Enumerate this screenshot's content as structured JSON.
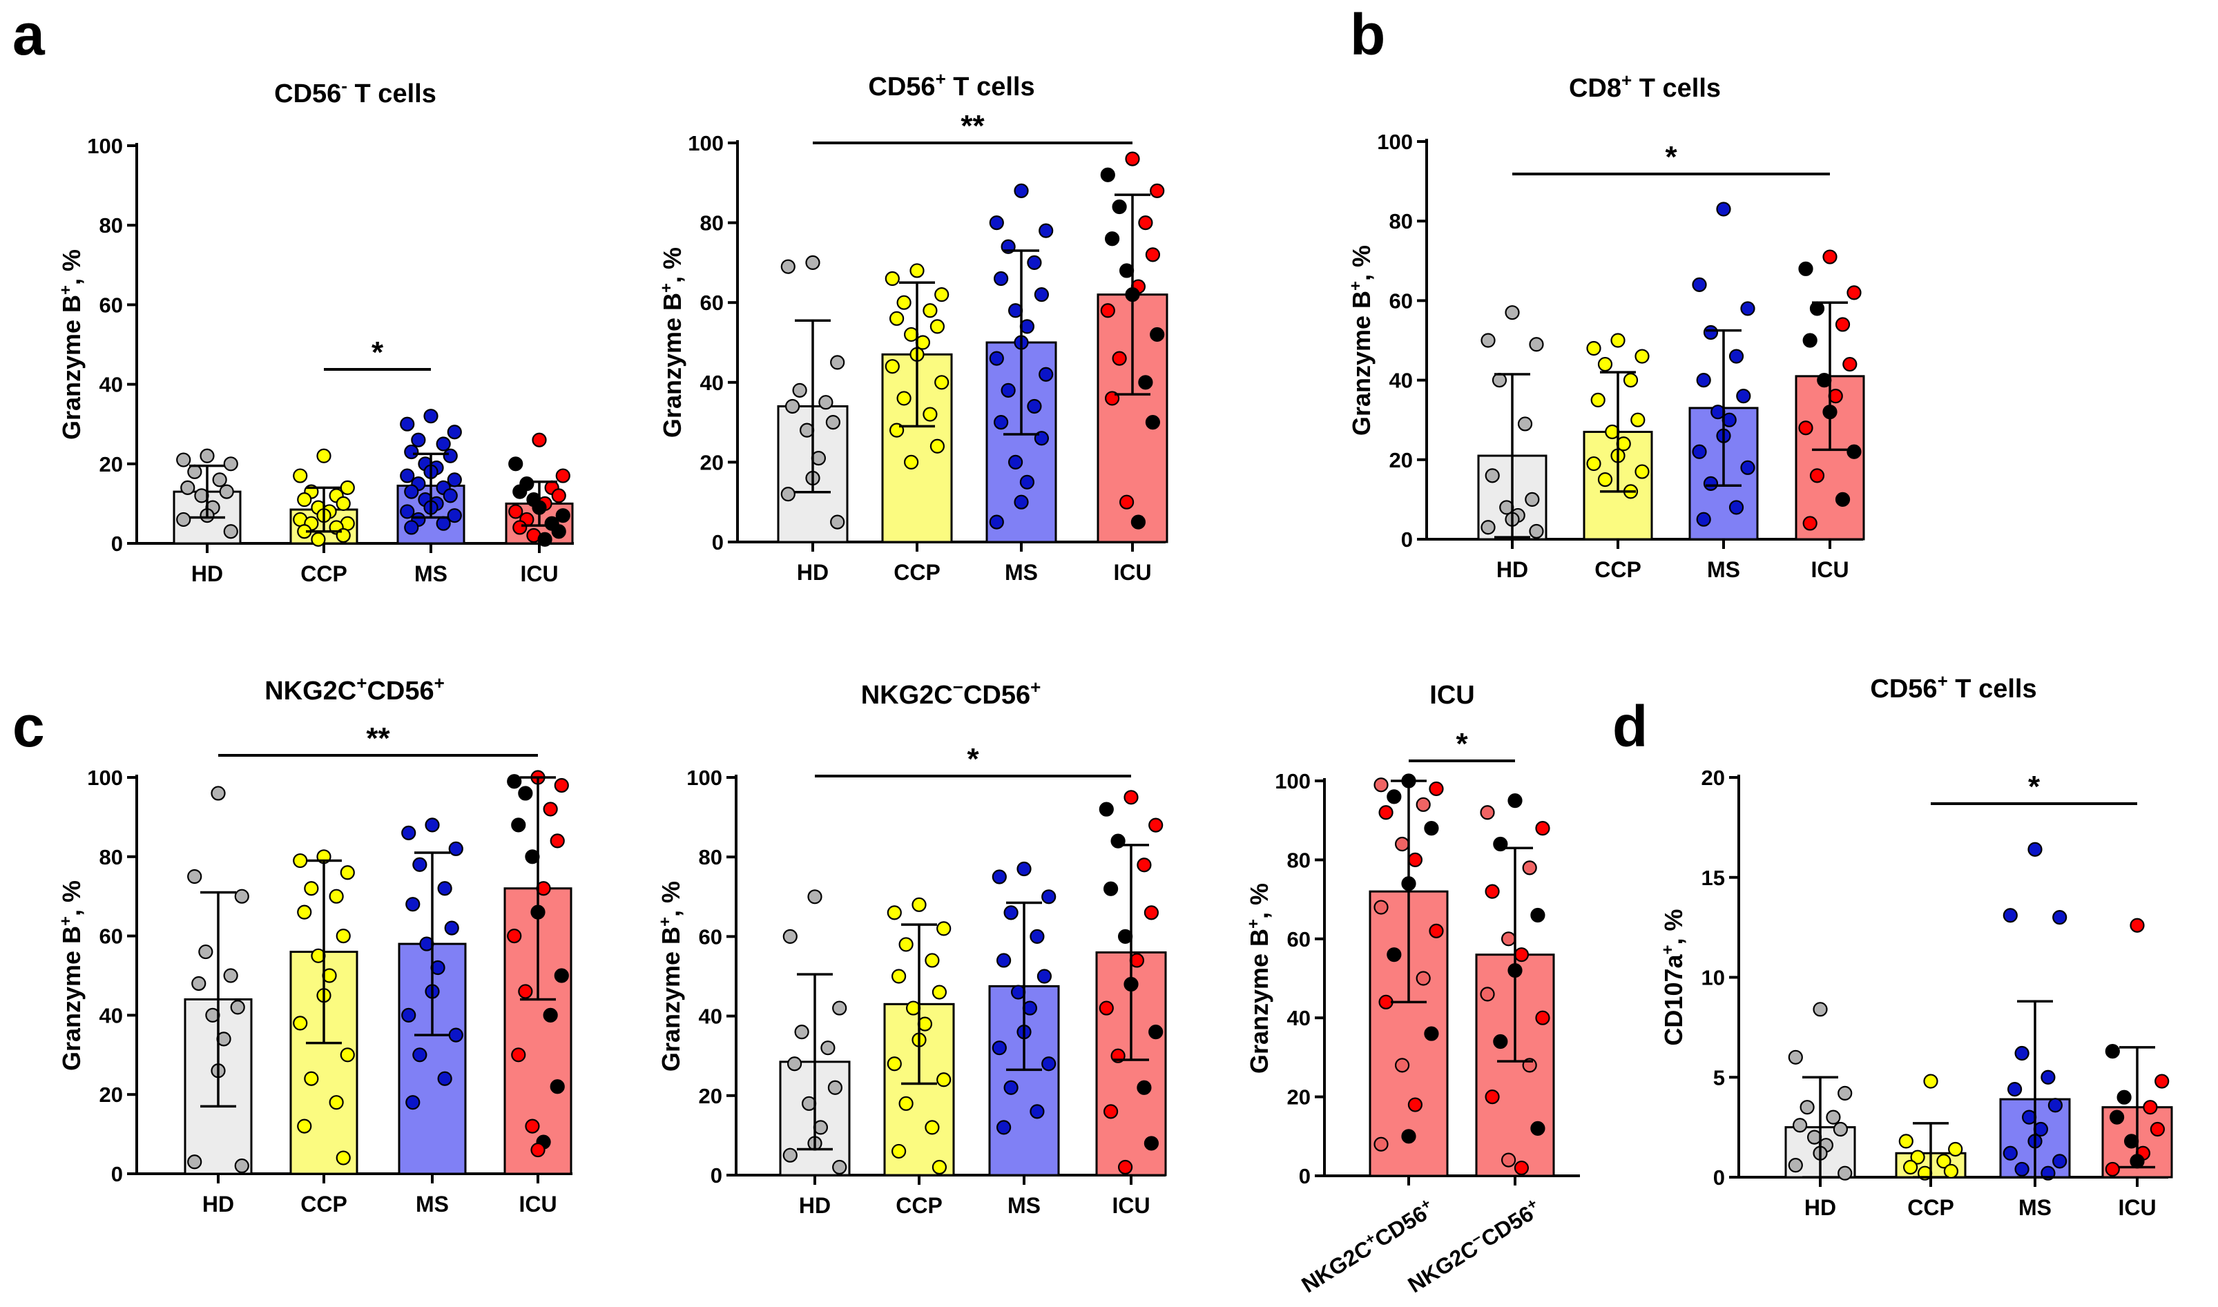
{
  "figure": {
    "panel_letters": [
      "a",
      "b",
      "c",
      "d"
    ]
  },
  "colors": {
    "HD_bar": "#ececec",
    "CCP_bar": "#fbfb80",
    "MS_bar": "#8080f5",
    "ICU_bar": "#fa7f7f",
    "HD_dot": "#b3b3b3",
    "CCP_dot": "#ffff00",
    "MS_dot": "#0a14c8",
    "ICU_dot_red": "#ff0000",
    "ICU_dot_black": "#000000",
    "ICU_dot_light": "#f06464"
  },
  "chart_data": [
    {
      "id": "a1",
      "type": "bar",
      "title": "CD56",
      "title_sup": "-",
      "title_rest": " T cells",
      "ylabel": "Granzyme B",
      "ylabel_sup": "+",
      "ylabel_rest": ", %",
      "ylim": [
        0,
        100
      ],
      "yticks": [
        0,
        20,
        40,
        60,
        80,
        100
      ],
      "categories": [
        "HD",
        "CCP",
        "MS",
        "ICU"
      ],
      "means": [
        13,
        8.5,
        14.5,
        10
      ],
      "sd": [
        6.5,
        5.5,
        8,
        5.5
      ],
      "significance": [
        {
          "from": 1,
          "to": 2,
          "label": "*"
        }
      ],
      "points": [
        [
          22,
          21,
          20,
          18,
          16,
          14,
          13,
          12,
          9,
          7,
          6,
          3
        ],
        [
          22,
          17,
          14,
          13,
          12,
          11,
          10,
          9,
          8,
          7,
          6,
          5,
          5,
          4,
          3,
          2,
          1
        ],
        [
          32,
          30,
          28,
          26,
          25,
          23,
          22,
          20,
          19,
          18,
          17,
          16,
          15,
          14,
          13,
          12,
          11,
          10,
          9,
          8,
          7,
          6,
          5,
          4
        ],
        [
          26,
          20,
          17,
          15,
          14,
          13,
          12,
          11,
          10,
          9,
          8,
          7,
          6,
          5,
          4,
          3,
          2,
          1
        ]
      ]
    },
    {
      "id": "a2",
      "type": "bar",
      "title": "CD56",
      "title_sup": "+",
      "title_rest": " T cells",
      "ylabel": "Granzyme B",
      "ylabel_sup": "+",
      "ylabel_rest": ", %",
      "ylim": [
        0,
        100
      ],
      "yticks": [
        0,
        20,
        40,
        60,
        80,
        100
      ],
      "categories": [
        "HD",
        "CCP",
        "MS",
        "ICU"
      ],
      "means": [
        34,
        47,
        50,
        62
      ],
      "sd": [
        21.5,
        18,
        23,
        25
      ],
      "significance": [
        {
          "from": 0,
          "to": 3,
          "label": "**"
        }
      ],
      "points": [
        [
          70,
          69,
          45,
          38,
          35,
          34,
          30,
          28,
          21,
          16,
          12,
          5
        ],
        [
          68,
          66,
          62,
          60,
          58,
          56,
          54,
          52,
          50,
          47,
          44,
          40,
          36,
          32,
          28,
          24,
          20
        ],
        [
          88,
          80,
          78,
          74,
          70,
          66,
          62,
          58,
          54,
          50,
          46,
          42,
          38,
          34,
          30,
          26,
          20,
          15,
          10,
          5
        ],
        [
          96,
          92,
          88,
          84,
          80,
          76,
          72,
          68,
          64,
          62,
          58,
          52,
          46,
          40,
          36,
          30,
          10,
          5
        ]
      ]
    },
    {
      "id": "b",
      "type": "bar",
      "title": "CD8",
      "title_sup": "+",
      "title_rest": " T cells",
      "ylabel": "Granzyme B",
      "ylabel_sup": "+",
      "ylabel_rest": ", %",
      "ylim": [
        0,
        100
      ],
      "yticks": [
        0,
        20,
        40,
        60,
        80,
        100
      ],
      "categories": [
        "HD",
        "CCP",
        "MS",
        "ICU"
      ],
      "means": [
        21,
        27,
        33,
        41
      ],
      "sd": [
        20.5,
        15,
        19.5,
        18.5
      ],
      "significance": [
        {
          "from": 0,
          "to": 3,
          "label": "*"
        }
      ],
      "points": [
        [
          57,
          50,
          49,
          40,
          29,
          16,
          10,
          8,
          6,
          5,
          3,
          2
        ],
        [
          50,
          48,
          46,
          44,
          40,
          35,
          30,
          27,
          24,
          21,
          19,
          17,
          15,
          12
        ],
        [
          83,
          64,
          58,
          52,
          46,
          40,
          36,
          32,
          30,
          26,
          22,
          18,
          14,
          8,
          5
        ],
        [
          71,
          68,
          62,
          58,
          54,
          50,
          44,
          40,
          36,
          32,
          28,
          22,
          16,
          10,
          4
        ]
      ]
    },
    {
      "id": "c1",
      "type": "bar",
      "title": "NKG2C",
      "title_sup": "+",
      "title_rest": "CD56",
      "title_sup2": "+",
      "ylabel": "Granzyme B",
      "ylabel_sup": "+",
      "ylabel_rest": ", %",
      "ylim": [
        0,
        100
      ],
      "yticks": [
        0,
        20,
        40,
        60,
        80,
        100
      ],
      "categories": [
        "HD",
        "CCP",
        "MS",
        "ICU"
      ],
      "means": [
        44,
        56,
        58,
        72
      ],
      "sd": [
        27,
        23,
        23,
        28
      ],
      "significance": [
        {
          "from": 0,
          "to": 3,
          "label": "**"
        }
      ],
      "points": [
        [
          96,
          75,
          70,
          56,
          50,
          48,
          42,
          40,
          34,
          26,
          3,
          2
        ],
        [
          80,
          79,
          76,
          72,
          70,
          66,
          60,
          55,
          50,
          45,
          38,
          30,
          24,
          18,
          12,
          4
        ],
        [
          88,
          86,
          82,
          78,
          72,
          68,
          62,
          58,
          52,
          46,
          40,
          35,
          30,
          24,
          18
        ],
        [
          100,
          99,
          98,
          96,
          92,
          88,
          84,
          80,
          72,
          66,
          60,
          50,
          46,
          40,
          30,
          22,
          12,
          8,
          6
        ]
      ]
    },
    {
      "id": "c2",
      "type": "bar",
      "title": "NKG2C",
      "title_sup": "−",
      "title_rest": "CD56",
      "title_sup2": "+",
      "ylabel": "Granzyme B",
      "ylabel_sup": "+",
      "ylabel_rest": ", %",
      "ylim": [
        0,
        100
      ],
      "yticks": [
        0,
        20,
        40,
        60,
        80,
        100
      ],
      "categories": [
        "HD",
        "CCP",
        "MS",
        "ICU"
      ],
      "means": [
        28.5,
        43,
        47.5,
        56
      ],
      "sd": [
        22,
        20,
        21,
        27
      ],
      "significance": [
        {
          "from": 0,
          "to": 3,
          "label": "*"
        }
      ],
      "points": [
        [
          70,
          60,
          42,
          36,
          32,
          28,
          22,
          18,
          12,
          8,
          5,
          2
        ],
        [
          68,
          66,
          62,
          58,
          54,
          50,
          46,
          42,
          38,
          34,
          28,
          24,
          18,
          12,
          6,
          2
        ],
        [
          77,
          75,
          70,
          66,
          60,
          54,
          50,
          46,
          42,
          36,
          32,
          28,
          22,
          16,
          12
        ],
        [
          95,
          92,
          88,
          84,
          78,
          72,
          66,
          60,
          54,
          48,
          42,
          36,
          30,
          22,
          16,
          8,
          2
        ]
      ]
    },
    {
      "id": "c3",
      "type": "bar",
      "title": "ICU",
      "ylabel": "Granzyme B",
      "ylabel_sup": "+",
      "ylabel_rest": ", %",
      "ylim": [
        0,
        100
      ],
      "yticks": [
        0,
        20,
        40,
        60,
        80,
        100
      ],
      "categories": [
        "NKG2C+CD56+",
        "NKG2C−CD56+"
      ],
      "category_parts": [
        [
          "NKG2C",
          "+",
          "CD56",
          "+"
        ],
        [
          "NKG2C",
          "−",
          "CD56",
          "+"
        ]
      ],
      "means": [
        72,
        56
      ],
      "sd": [
        28,
        27
      ],
      "significance": [
        {
          "from": 0,
          "to": 1,
          "label": "*"
        }
      ],
      "points": [
        [
          100,
          99,
          98,
          96,
          94,
          92,
          88,
          84,
          80,
          74,
          68,
          62,
          56,
          50,
          44,
          36,
          28,
          18,
          10,
          8
        ],
        [
          95,
          92,
          88,
          84,
          78,
          72,
          66,
          60,
          56,
          52,
          46,
          40,
          34,
          28,
          20,
          12,
          4,
          2
        ]
      ]
    },
    {
      "id": "d",
      "type": "bar",
      "title": "CD56",
      "title_sup": "+",
      "title_rest": " T cells",
      "ylabel": "CD107a",
      "ylabel_sup": "+",
      "ylabel_rest": ", %",
      "ylim": [
        0,
        20
      ],
      "yticks": [
        0,
        5,
        10,
        15,
        20
      ],
      "categories": [
        "HD",
        "CCP",
        "MS",
        "ICU"
      ],
      "means": [
        2.5,
        1.2,
        3.9,
        3.5
      ],
      "sd": [
        2.5,
        1.5,
        4.9,
        3.0
      ],
      "significance": [
        {
          "from": 1,
          "to": 3,
          "label": "*"
        }
      ],
      "points": [
        [
          8.4,
          6.0,
          4.2,
          3.5,
          3.0,
          2.6,
          2.4,
          2.0,
          1.6,
          1.2,
          0.6,
          0.2
        ],
        [
          4.8,
          1.8,
          1.4,
          1.0,
          0.8,
          0.5,
          0.3,
          0.2
        ],
        [
          16.4,
          13.1,
          13.0,
          6.2,
          5.0,
          4.4,
          3.6,
          3.0,
          2.4,
          1.8,
          1.2,
          0.8,
          0.4,
          0.2
        ],
        [
          12.6,
          6.3,
          4.8,
          4.0,
          3.5,
          3.0,
          2.4,
          1.8,
          1.2,
          0.8,
          0.4
        ]
      ]
    }
  ]
}
